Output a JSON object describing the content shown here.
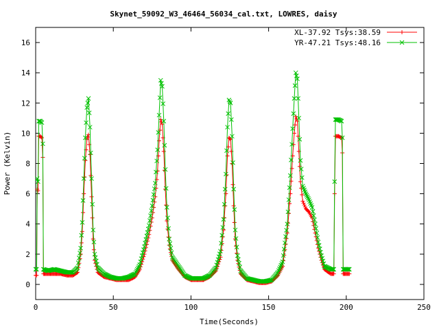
{
  "chart_data": {
    "type": "line",
    "title": "Skynet_59092_W3_46464_56034_cal.txt, LOWRES, daisy",
    "xlabel": "Time(Seconds)",
    "ylabel": "Power (Kelvin)",
    "xlim": [
      0,
      250
    ],
    "ylim": [
      -1,
      17
    ],
    "xticks": [
      0,
      50,
      100,
      150,
      200,
      250
    ],
    "yticks": [
      0,
      2,
      4,
      6,
      8,
      10,
      12,
      14,
      16
    ],
    "xtick_labels": [
      "0",
      "50",
      "100",
      "150",
      "200",
      "250"
    ],
    "ytick_labels": [
      "0",
      "2",
      "4",
      "6",
      "8",
      "10",
      "12",
      "14",
      "16"
    ],
    "legend_position": "top-right",
    "series": [
      {
        "name": "XL-37.92 Tsys:38.59",
        "color": "#ff0000",
        "marker": "plus",
        "points": [
          [
            0,
            0.6
          ],
          [
            0.6,
            0.6
          ],
          [
            1,
            6.3
          ],
          [
            1.5,
            6.2
          ],
          [
            2,
            9.8
          ],
          [
            3,
            9.8
          ],
          [
            4,
            9.7
          ],
          [
            4.6,
            8.4
          ],
          [
            5,
            0.7
          ],
          [
            8,
            0.7
          ],
          [
            12,
            0.7
          ],
          [
            16,
            0.7
          ],
          [
            20,
            0.6
          ],
          [
            24,
            0.6
          ],
          [
            27,
            0.8
          ],
          [
            29,
            2.0
          ],
          [
            30,
            3.5
          ],
          [
            31,
            6.0
          ],
          [
            32,
            8.2
          ],
          [
            33,
            9.6
          ],
          [
            34,
            9.9
          ],
          [
            35,
            8.6
          ],
          [
            36,
            5.8
          ],
          [
            37,
            3.0
          ],
          [
            38,
            1.6
          ],
          [
            40,
            0.8
          ],
          [
            44,
            0.5
          ],
          [
            48,
            0.4
          ],
          [
            52,
            0.3
          ],
          [
            56,
            0.3
          ],
          [
            60,
            0.3
          ],
          [
            64,
            0.5
          ],
          [
            67,
            1.0
          ],
          [
            70,
            2.0
          ],
          [
            73,
            3.3
          ],
          [
            75,
            4.4
          ],
          [
            77,
            5.8
          ],
          [
            78.5,
            7.5
          ],
          [
            79.5,
            9.5
          ],
          [
            80.5,
            10.9
          ],
          [
            81.5,
            10.6
          ],
          [
            82.5,
            8.8
          ],
          [
            83.5,
            6.3
          ],
          [
            84.5,
            4.2
          ],
          [
            86,
            2.6
          ],
          [
            88,
            1.6
          ],
          [
            92,
            1.0
          ],
          [
            96,
            0.5
          ],
          [
            100,
            0.3
          ],
          [
            104,
            0.3
          ],
          [
            108,
            0.3
          ],
          [
            112,
            0.5
          ],
          [
            116,
            0.9
          ],
          [
            119,
            1.8
          ],
          [
            121,
            3.6
          ],
          [
            122.5,
            6.0
          ],
          [
            123.5,
            8.5
          ],
          [
            124.5,
            9.7
          ],
          [
            125.5,
            9.6
          ],
          [
            126.5,
            8.0
          ],
          [
            127.5,
            5.2
          ],
          [
            128.5,
            3.0
          ],
          [
            130,
            1.6
          ],
          [
            132,
            0.7
          ],
          [
            136,
            0.3
          ],
          [
            140,
            0.2
          ],
          [
            144,
            0.1
          ],
          [
            148,
            0.1
          ],
          [
            152,
            0.2
          ],
          [
            156,
            0.6
          ],
          [
            159,
            1.2
          ],
          [
            162,
            3.4
          ],
          [
            164,
            6.0
          ],
          [
            165.5,
            8.5
          ],
          [
            166.5,
            10.0
          ],
          [
            167.5,
            11.1
          ],
          [
            168.5,
            10.8
          ],
          [
            169.5,
            8.8
          ],
          [
            170.5,
            6.8
          ],
          [
            172,
            5.5
          ],
          [
            174,
            5.0
          ],
          [
            176,
            4.8
          ],
          [
            178,
            4.4
          ],
          [
            180,
            3.4
          ],
          [
            182,
            2.4
          ],
          [
            184,
            1.6
          ],
          [
            186,
            1.0
          ],
          [
            190,
            0.7
          ],
          [
            192,
            0.7
          ],
          [
            192.5,
            6.0
          ],
          [
            193,
            9.8
          ],
          [
            195,
            9.8
          ],
          [
            197,
            9.7
          ],
          [
            197.5,
            8.7
          ],
          [
            198,
            0.7
          ],
          [
            200,
            0.7
          ],
          [
            202,
            0.7
          ]
        ]
      },
      {
        "name": "YR-47.21 Tsys:48.16",
        "color": "#00c000",
        "marker": "cross",
        "points": [
          [
            0,
            1.0
          ],
          [
            0.6,
            1.0
          ],
          [
            1,
            7.0
          ],
          [
            1.5,
            6.8
          ],
          [
            2,
            10.8
          ],
          [
            3,
            10.8
          ],
          [
            4,
            10.7
          ],
          [
            4.6,
            9.3
          ],
          [
            5,
            1.0
          ],
          [
            8,
            0.9
          ],
          [
            12,
            1.0
          ],
          [
            16,
            0.9
          ],
          [
            20,
            0.8
          ],
          [
            24,
            0.8
          ],
          [
            27,
            1.1
          ],
          [
            29,
            2.4
          ],
          [
            30,
            4.1
          ],
          [
            31,
            7.0
          ],
          [
            32,
            9.7
          ],
          [
            33,
            11.7
          ],
          [
            34,
            12.3
          ],
          [
            35,
            10.4
          ],
          [
            36,
            7.0
          ],
          [
            37,
            3.6
          ],
          [
            38,
            2.0
          ],
          [
            40,
            1.1
          ],
          [
            44,
            0.7
          ],
          [
            48,
            0.5
          ],
          [
            52,
            0.4
          ],
          [
            56,
            0.4
          ],
          [
            60,
            0.5
          ],
          [
            64,
            0.7
          ],
          [
            67,
            1.3
          ],
          [
            70,
            2.5
          ],
          [
            73,
            3.9
          ],
          [
            75,
            5.2
          ],
          [
            77,
            6.7
          ],
          [
            78.5,
            8.9
          ],
          [
            79.5,
            11.2
          ],
          [
            80.5,
            13.5
          ],
          [
            81.5,
            13.1
          ],
          [
            82.5,
            10.8
          ],
          [
            83.5,
            7.6
          ],
          [
            84.5,
            5.1
          ],
          [
            86,
            3.0
          ],
          [
            88,
            1.8
          ],
          [
            92,
            1.2
          ],
          [
            96,
            0.6
          ],
          [
            100,
            0.4
          ],
          [
            104,
            0.4
          ],
          [
            108,
            0.4
          ],
          [
            112,
            0.6
          ],
          [
            116,
            1.1
          ],
          [
            119,
            2.2
          ],
          [
            121,
            4.3
          ],
          [
            122.5,
            7.3
          ],
          [
            123.5,
            10.4
          ],
          [
            124.5,
            12.2
          ],
          [
            125.5,
            12.0
          ],
          [
            126.5,
            9.8
          ],
          [
            127.5,
            6.3
          ],
          [
            128.5,
            3.6
          ],
          [
            130,
            1.9
          ],
          [
            132,
            0.9
          ],
          [
            136,
            0.4
          ],
          [
            140,
            0.3
          ],
          [
            144,
            0.2
          ],
          [
            148,
            0.2
          ],
          [
            152,
            0.3
          ],
          [
            156,
            0.8
          ],
          [
            159,
            1.5
          ],
          [
            162,
            4.0
          ],
          [
            164,
            7.2
          ],
          [
            165.5,
            10.3
          ],
          [
            166.5,
            12.3
          ],
          [
            167.5,
            14.0
          ],
          [
            168.5,
            13.6
          ],
          [
            169.5,
            11.0
          ],
          [
            170.5,
            8.2
          ],
          [
            172,
            6.5
          ],
          [
            174,
            6.0
          ],
          [
            176,
            5.6
          ],
          [
            178,
            5.1
          ],
          [
            180,
            4.0
          ],
          [
            182,
            2.8
          ],
          [
            184,
            1.9
          ],
          [
            186,
            1.2
          ],
          [
            190,
            1.0
          ],
          [
            192,
            1.0
          ],
          [
            192.5,
            6.8
          ],
          [
            193,
            10.9
          ],
          [
            195,
            10.9
          ],
          [
            197,
            10.8
          ],
          [
            197.5,
            9.7
          ],
          [
            198,
            1.0
          ],
          [
            200,
            1.0
          ],
          [
            202,
            1.0
          ]
        ]
      }
    ]
  }
}
